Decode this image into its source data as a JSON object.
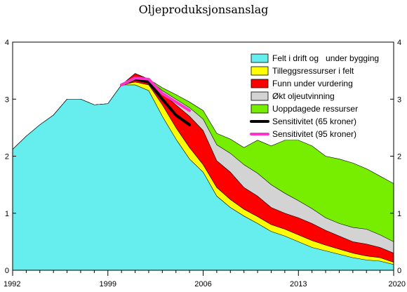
{
  "chart_data": {
    "type": "area",
    "title": "Oljeproduksjonsanslag",
    "xlabel": "",
    "ylabel": "",
    "xlim": [
      1992,
      2020
    ],
    "ylim": [
      0,
      4
    ],
    "x_ticks": [
      1992,
      1999,
      2006,
      2013,
      2020
    ],
    "y_ticks": [
      0,
      1,
      2,
      3,
      4
    ],
    "grid": false,
    "legend_position": "top-right",
    "x": [
      1992,
      1993,
      1994,
      1995,
      1996,
      1997,
      1998,
      1999,
      2000,
      2001,
      2002,
      2003,
      2004,
      2005,
      2006,
      2007,
      2008,
      2009,
      2010,
      2011,
      2012,
      2013,
      2014,
      2015,
      2016,
      2017,
      2018,
      2019,
      2020
    ],
    "stacked_totals": [
      {
        "name": "Felt i drift og   under bygging",
        "color": "#66eeee",
        "values": [
          2.12,
          2.35,
          2.55,
          2.72,
          3.0,
          3.0,
          2.9,
          2.92,
          3.25,
          3.25,
          3.15,
          2.7,
          2.3,
          1.95,
          1.72,
          1.3,
          1.1,
          0.95,
          0.82,
          0.68,
          0.6,
          0.5,
          0.4,
          0.34,
          0.28,
          0.22,
          0.18,
          0.16,
          0.1
        ]
      },
      {
        "name": "Tilleggsressurser i felt",
        "color": "#ffff00",
        "values": [
          2.12,
          2.35,
          2.55,
          2.72,
          3.0,
          3.0,
          2.9,
          2.92,
          3.25,
          3.3,
          3.25,
          2.9,
          2.5,
          2.15,
          1.85,
          1.45,
          1.24,
          1.07,
          0.94,
          0.8,
          0.72,
          0.62,
          0.52,
          0.44,
          0.37,
          0.3,
          0.25,
          0.22,
          0.14
        ]
      },
      {
        "name": "Funn under vurdering",
        "color": "#ff0000",
        "values": [
          2.12,
          2.35,
          2.55,
          2.72,
          3.0,
          3.0,
          2.9,
          2.92,
          3.25,
          3.45,
          3.35,
          3.1,
          2.9,
          2.7,
          2.45,
          1.92,
          1.72,
          1.45,
          1.3,
          1.1,
          1.0,
          0.92,
          0.82,
          0.7,
          0.6,
          0.5,
          0.46,
          0.4,
          0.3
        ]
      },
      {
        "name": "Økt oljeutvinning",
        "color": "#d3d3d3",
        "values": [
          2.12,
          2.35,
          2.55,
          2.72,
          3.0,
          3.0,
          2.9,
          2.92,
          3.25,
          3.45,
          3.35,
          3.15,
          3.0,
          2.85,
          2.65,
          2.2,
          2.05,
          1.85,
          1.7,
          1.5,
          1.35,
          1.22,
          1.08,
          0.92,
          0.82,
          0.75,
          0.72,
          0.62,
          0.5
        ]
      },
      {
        "name": "Uoppdagede ressurser",
        "color": "#77ee00",
        "values": [
          2.12,
          2.35,
          2.55,
          2.72,
          3.0,
          3.0,
          2.9,
          2.92,
          3.25,
          3.45,
          3.35,
          3.2,
          3.08,
          2.95,
          2.8,
          2.4,
          2.3,
          2.15,
          2.28,
          2.18,
          2.28,
          2.28,
          2.18,
          2.0,
          1.95,
          1.88,
          1.78,
          1.65,
          1.52
        ]
      }
    ],
    "lines": [
      {
        "name": "Sensitivitet (65 kroner)",
        "color": "#000000",
        "x": [
          2000,
          2001,
          2002,
          2003,
          2004,
          2005
        ],
        "values": [
          3.25,
          3.35,
          3.3,
          3.0,
          2.72,
          2.55
        ]
      },
      {
        "name": "Sensitivitet (95 kroner)",
        "color": "#ff33cc",
        "x": [
          2000,
          2001,
          2002,
          2003,
          2004,
          2005
        ],
        "values": [
          3.25,
          3.37,
          3.35,
          3.1,
          2.95,
          2.8
        ]
      }
    ]
  }
}
